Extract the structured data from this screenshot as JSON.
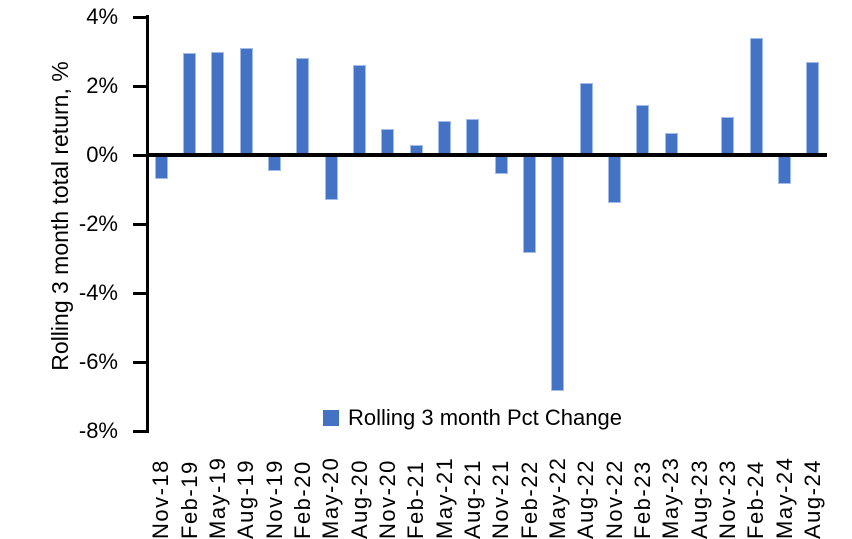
{
  "y_axis": {
    "title": "Rolling 3 month total return, %"
  },
  "legend": {
    "label": "Rolling 3 month Pct Change",
    "swatch_color": "#4472C4"
  },
  "colors": {
    "bar_fill": "#4472C4",
    "bar_border": "#a3bce8",
    "axis": "#000000"
  },
  "chart_data": {
    "type": "bar",
    "title": "",
    "xlabel": "",
    "ylabel": "Rolling 3 month total return, %",
    "ylim": [
      -8,
      4
    ],
    "grid": false,
    "legend_position": "bottom-center",
    "y_ticks": [
      {
        "value": 4,
        "label": "4%"
      },
      {
        "value": 2,
        "label": "2%"
      },
      {
        "value": 0,
        "label": "0%"
      },
      {
        "value": -2,
        "label": "-2%"
      },
      {
        "value": -4,
        "label": "-4%"
      },
      {
        "value": -6,
        "label": "-6%"
      },
      {
        "value": -8,
        "label": "-8%"
      }
    ],
    "categories": [
      "Nov-18",
      "Feb-19",
      "May-19",
      "Aug-19",
      "Nov-19",
      "Feb-20",
      "May-20",
      "Aug-20",
      "Nov-20",
      "Feb-21",
      "May-21",
      "Aug-21",
      "Nov-21",
      "Feb-22",
      "May-22",
      "Aug-22",
      "Nov-22",
      "Feb-23",
      "May-23",
      "Aug-23",
      "Nov-23",
      "Feb-24",
      "May-24",
      "Aug-24"
    ],
    "series": [
      {
        "name": "Rolling 3 month Pct Change",
        "values": [
          -0.7,
          2.95,
          3.0,
          3.1,
          -0.45,
          2.8,
          -1.3,
          2.6,
          0.75,
          0.3,
          1.0,
          1.05,
          -0.55,
          -2.85,
          -6.85,
          2.1,
          -1.4,
          1.45,
          0.65,
          0.0,
          1.1,
          3.4,
          -0.85,
          2.7
        ]
      }
    ]
  }
}
